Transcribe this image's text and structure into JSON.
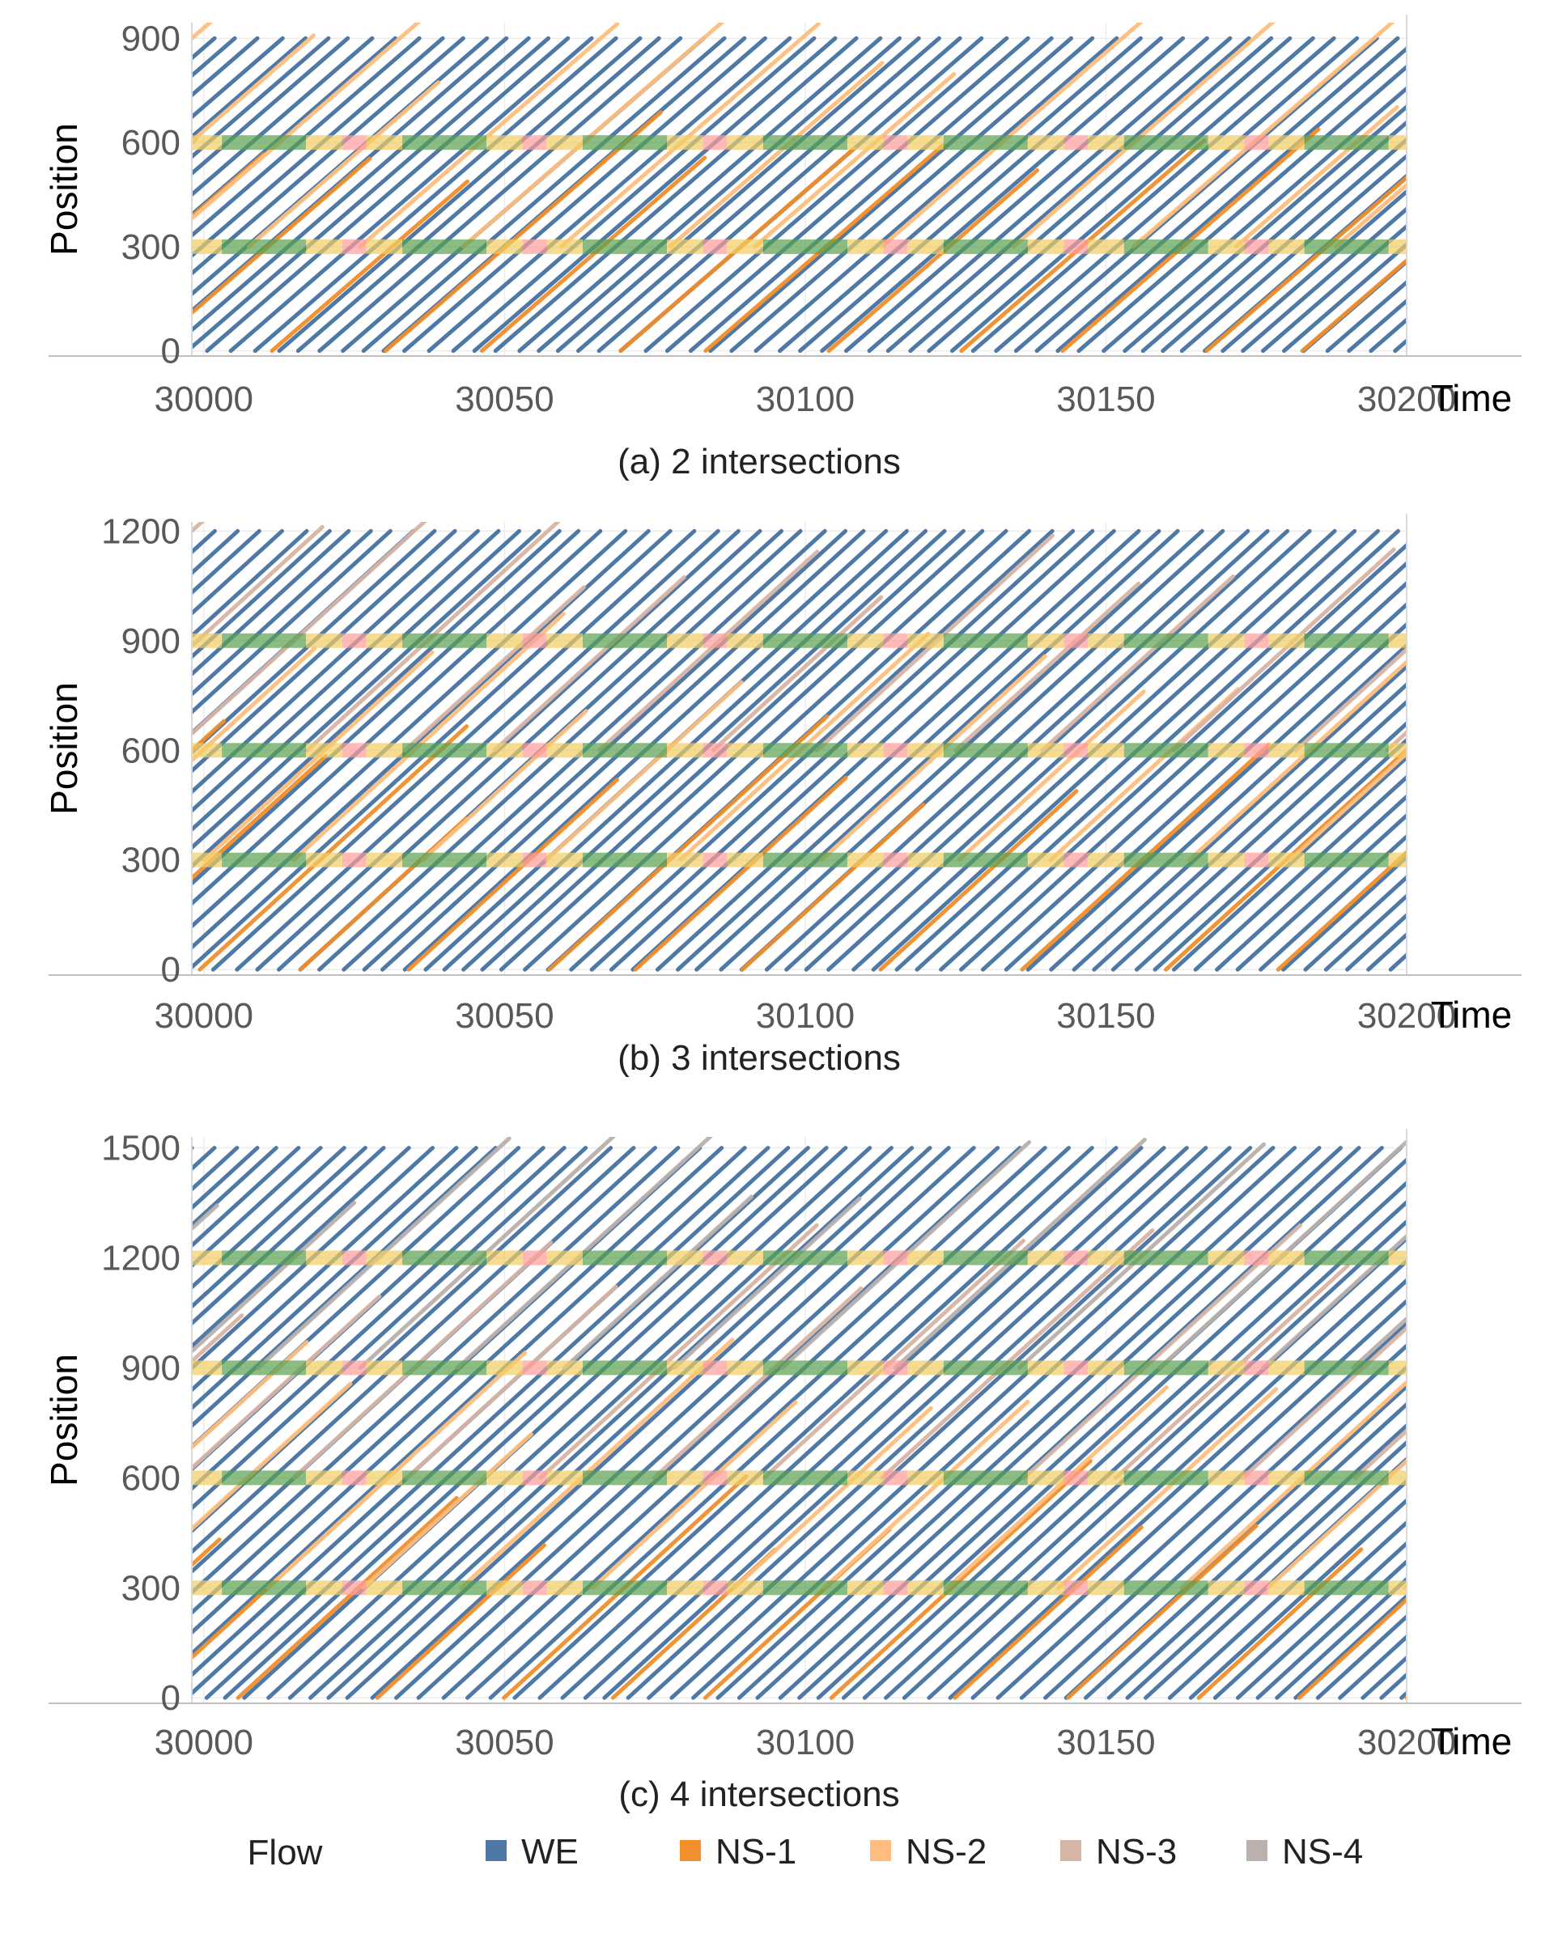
{
  "chart_data": [
    {
      "type": "line",
      "caption": "(a) 2 intersections",
      "ylabel": "Position",
      "xlabel": "Time",
      "xlim": [
        29998,
        30200
      ],
      "ylim": [
        -15,
        945
      ],
      "xticks": [
        "30000",
        "30050",
        "30100",
        "30150",
        "30200"
      ],
      "yticks": [
        "0",
        "300",
        "600",
        "900"
      ],
      "intersections": [
        300,
        600
      ],
      "flows": [
        "WE",
        "NS-1",
        "NS-2"
      ]
    },
    {
      "type": "line",
      "caption": "(b) 3 intersections",
      "ylabel": "Position",
      "xlabel": "Time",
      "xlim": [
        29998,
        30200
      ],
      "ylim": [
        -15,
        1225
      ],
      "xticks": [
        "30000",
        "30050",
        "30100",
        "30150",
        "30200"
      ],
      "yticks": [
        "0",
        "300",
        "600",
        "900",
        "1200"
      ],
      "intersections": [
        300,
        600,
        900
      ],
      "flows": [
        "WE",
        "NS-1",
        "NS-2",
        "NS-3"
      ]
    },
    {
      "type": "line",
      "caption": "(c) 4 intersections",
      "ylabel": "Position",
      "xlabel": "Time",
      "xlim": [
        29998,
        30200
      ],
      "ylim": [
        -15,
        1530
      ],
      "xticks": [
        "30000",
        "30050",
        "30100",
        "30150",
        "30200"
      ],
      "yticks": [
        "0",
        "300",
        "600",
        "900",
        "1200",
        "1500"
      ],
      "intersections": [
        300,
        600,
        900,
        1200
      ],
      "flows": [
        "WE",
        "NS-1",
        "NS-2",
        "NS-3",
        "NS-4"
      ]
    }
  ],
  "legend": {
    "title": "Flow",
    "items": [
      {
        "label": "WE",
        "color": "#4e79a7"
      },
      {
        "label": "NS-1",
        "color": "#f28e2b"
      },
      {
        "label": "NS-2",
        "color": "#ffbe7d"
      },
      {
        "label": "NS-3",
        "color": "#d7b5a6"
      },
      {
        "label": "NS-4",
        "color": "#bab0ac"
      }
    ]
  },
  "signal_colors": {
    "green": "#59a14f",
    "yellow": "#f1ce63",
    "red": "#ff9d9a"
  },
  "grid": true
}
